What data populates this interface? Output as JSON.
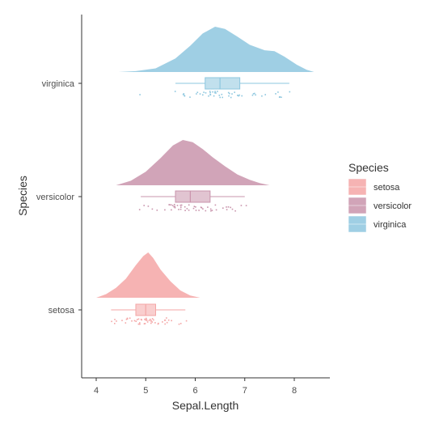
{
  "chart_data": {
    "type": "raincloud",
    "title": "",
    "xlabel": "Sepal.Length",
    "ylabel": "Species",
    "xlim": [
      3.7,
      8.75
    ],
    "xticks": [
      4,
      5,
      6,
      7,
      8
    ],
    "grid": false,
    "legend": {
      "title": "Species",
      "placement": "right",
      "entries": [
        "setosa",
        "versicolor",
        "virginica"
      ]
    },
    "categories": [
      "setosa",
      "versicolor",
      "virginica"
    ],
    "series": [
      {
        "name": "setosa",
        "color": "#F4A6A6",
        "box": {
          "min": 4.3,
          "q1": 4.8,
          "median": 5.0,
          "q3": 5.2,
          "max": 5.8
        },
        "density": [
          [
            4.0,
            0.0
          ],
          [
            4.2,
            0.08
          ],
          [
            4.4,
            0.22
          ],
          [
            4.6,
            0.42
          ],
          [
            4.8,
            0.72
          ],
          [
            4.95,
            0.92
          ],
          [
            5.05,
            1.0
          ],
          [
            5.15,
            0.88
          ],
          [
            5.3,
            0.62
          ],
          [
            5.5,
            0.36
          ],
          [
            5.7,
            0.16
          ],
          [
            5.9,
            0.05
          ],
          [
            6.1,
            0.0
          ]
        ],
        "points": [
          4.3,
          4.4,
          4.4,
          4.4,
          4.5,
          4.6,
          4.6,
          4.6,
          4.6,
          4.7,
          4.7,
          4.8,
          4.8,
          4.8,
          4.8,
          4.8,
          4.9,
          4.9,
          4.9,
          4.9,
          5.0,
          5.0,
          5.0,
          5.0,
          5.0,
          5.0,
          5.0,
          5.0,
          5.1,
          5.1,
          5.1,
          5.1,
          5.1,
          5.1,
          5.1,
          5.1,
          5.2,
          5.2,
          5.2,
          5.3,
          5.4,
          5.4,
          5.4,
          5.4,
          5.4,
          5.5,
          5.5,
          5.7,
          5.7,
          5.8
        ]
      },
      {
        "name": "versicolor",
        "color": "#C994AC",
        "box": {
          "min": 4.9,
          "q1": 5.6,
          "median": 5.9,
          "q3": 6.3,
          "max": 7.0
        },
        "density": [
          [
            4.4,
            0.0
          ],
          [
            4.7,
            0.1
          ],
          [
            5.0,
            0.3
          ],
          [
            5.3,
            0.6
          ],
          [
            5.55,
            0.88
          ],
          [
            5.75,
            1.0
          ],
          [
            5.95,
            0.95
          ],
          [
            6.15,
            0.8
          ],
          [
            6.35,
            0.62
          ],
          [
            6.6,
            0.42
          ],
          [
            6.85,
            0.24
          ],
          [
            7.1,
            0.12
          ],
          [
            7.3,
            0.05
          ],
          [
            7.5,
            0.0
          ]
        ],
        "points": [
          4.9,
          5.0,
          5.0,
          5.1,
          5.2,
          5.4,
          5.5,
          5.5,
          5.5,
          5.5,
          5.5,
          5.6,
          5.6,
          5.6,
          5.6,
          5.6,
          5.7,
          5.7,
          5.7,
          5.7,
          5.7,
          5.8,
          5.8,
          5.8,
          5.9,
          5.9,
          6.0,
          6.0,
          6.0,
          6.0,
          6.1,
          6.1,
          6.1,
          6.1,
          6.2,
          6.2,
          6.3,
          6.3,
          6.3,
          6.4,
          6.4,
          6.5,
          6.6,
          6.6,
          6.7,
          6.7,
          6.7,
          6.8,
          6.9,
          7.0
        ]
      },
      {
        "name": "virginica",
        "color": "#8EC7DF",
        "box": {
          "min": 5.6,
          "q1": 6.2,
          "median": 6.5,
          "q3": 6.9,
          "max": 7.9
        },
        "density": [
          [
            4.45,
            0.0
          ],
          [
            4.8,
            0.02
          ],
          [
            5.2,
            0.08
          ],
          [
            5.6,
            0.3
          ],
          [
            5.9,
            0.58
          ],
          [
            6.15,
            0.85
          ],
          [
            6.4,
            1.0
          ],
          [
            6.6,
            0.95
          ],
          [
            6.85,
            0.78
          ],
          [
            7.1,
            0.6
          ],
          [
            7.4,
            0.48
          ],
          [
            7.6,
            0.46
          ],
          [
            7.8,
            0.34
          ],
          [
            8.05,
            0.16
          ],
          [
            8.25,
            0.05
          ],
          [
            8.4,
            0.0
          ]
        ],
        "points": [
          4.9,
          5.6,
          5.7,
          5.8,
          5.8,
          5.8,
          5.9,
          6.0,
          6.0,
          6.1,
          6.1,
          6.2,
          6.2,
          6.3,
          6.3,
          6.3,
          6.3,
          6.3,
          6.3,
          6.4,
          6.4,
          6.4,
          6.4,
          6.4,
          6.5,
          6.5,
          6.5,
          6.5,
          6.7,
          6.7,
          6.7,
          6.7,
          6.7,
          6.8,
          6.8,
          6.9,
          6.9,
          6.9,
          7.1,
          7.2,
          7.2,
          7.2,
          7.3,
          7.4,
          7.6,
          7.7,
          7.7,
          7.7,
          7.7,
          7.9
        ]
      }
    ]
  }
}
